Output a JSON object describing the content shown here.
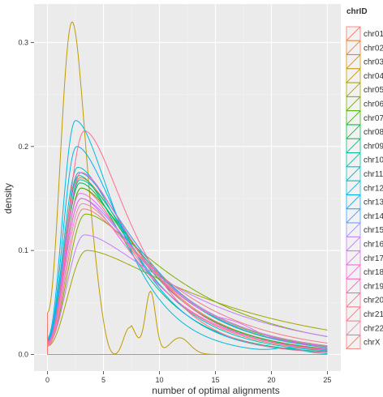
{
  "colors": {
    "panel_bg": "#EBEBEB",
    "grid_major": "#FFFFFF",
    "grid_minor": "#F5F5F5",
    "legend_key_bg": "#F2F2F2"
  },
  "chart_data": {
    "type": "density",
    "title": "",
    "xlabel": "number of optimal alignments",
    "ylabel": "density",
    "xlim": [
      -1.2,
      26.2
    ],
    "ylim": [
      -0.016,
      0.337
    ],
    "x_ticks": [
      0,
      5,
      10,
      15,
      20,
      25
    ],
    "x_tick_labels": [
      "0",
      "5",
      "10",
      "15",
      "20",
      "25"
    ],
    "y_ticks": [
      0.0,
      0.1,
      0.2,
      0.3
    ],
    "y_tick_labels": [
      "0.0",
      "0.1",
      "0.2",
      "0.3"
    ],
    "grid": true,
    "legend": {
      "title": "chrID",
      "placement": "right"
    },
    "series": [
      {
        "name": "chr01",
        "color": "#F8766D",
        "y0": 0.01,
        "peak": 0.16,
        "mode": 3.0,
        "tail": 3.2,
        "xmax": 25,
        "bumps": []
      },
      {
        "name": "chr02",
        "color": "#EA8331",
        "y0": 0.012,
        "peak": 0.17,
        "mode": 2.9,
        "tail": 3.3,
        "xmax": 25,
        "bumps": []
      },
      {
        "name": "chr03",
        "color": "#D89000",
        "y0": 0.014,
        "peak": 0.175,
        "mode": 2.8,
        "tail": 3.4,
        "xmax": 25,
        "bumps": []
      },
      {
        "name": "chr04",
        "color": "#C09B00",
        "y0": 0.04,
        "peak": 0.32,
        "mode": 2.2,
        "tail": 1.1,
        "xmax": 25,
        "bumps": [
          [
            7.2,
            0.028,
            0.7
          ],
          [
            9.2,
            0.06,
            0.45
          ],
          [
            11.8,
            0.016,
            0.9
          ]
        ]
      },
      {
        "name": "chr05",
        "color": "#A3A500",
        "y0": 0.008,
        "peak": 0.1,
        "mode": 3.5,
        "tail": 5.0,
        "xmax": 25,
        "bumps": []
      },
      {
        "name": "chr06",
        "color": "#7CAE00",
        "y0": 0.01,
        "peak": 0.135,
        "mode": 3.4,
        "tail": 4.2,
        "xmax": 25,
        "bumps": []
      },
      {
        "name": "chr07",
        "color": "#39B600",
        "y0": 0.012,
        "peak": 0.16,
        "mode": 3.0,
        "tail": 3.5,
        "xmax": 25,
        "bumps": []
      },
      {
        "name": "chr08",
        "color": "#00BB4E",
        "y0": 0.013,
        "peak": 0.165,
        "mode": 2.9,
        "tail": 3.3,
        "xmax": 25,
        "bumps": []
      },
      {
        "name": "chr09",
        "color": "#00BF7D",
        "y0": 0.014,
        "peak": 0.172,
        "mode": 2.8,
        "tail": 3.0,
        "xmax": 25,
        "bumps": []
      },
      {
        "name": "chr10",
        "color": "#00C1A3",
        "y0": 0.012,
        "peak": 0.168,
        "mode": 2.9,
        "tail": 3.4,
        "xmax": 25,
        "bumps": []
      },
      {
        "name": "chr11",
        "color": "#00BFC4",
        "y0": 0.015,
        "peak": 0.18,
        "mode": 2.7,
        "tail": 3.1,
        "xmax": 25,
        "bumps": []
      },
      {
        "name": "chr12",
        "color": "#00BAE0",
        "y0": 0.016,
        "peak": 0.225,
        "mode": 2.5,
        "tail": 2.6,
        "xmax": 25,
        "bumps": [
          [
            21.5,
            0.004,
            1.2
          ]
        ]
      },
      {
        "name": "chr13",
        "color": "#00B0F6",
        "y0": 0.014,
        "peak": 0.2,
        "mode": 2.6,
        "tail": 2.9,
        "xmax": 25,
        "bumps": []
      },
      {
        "name": "chr14",
        "color": "#35A2FF",
        "y0": 0.012,
        "peak": 0.175,
        "mode": 2.8,
        "tail": 3.4,
        "xmax": 25,
        "bumps": []
      },
      {
        "name": "chr15",
        "color": "#9590FF",
        "y0": 0.011,
        "peak": 0.15,
        "mode": 3.0,
        "tail": 3.6,
        "xmax": 25,
        "bumps": []
      },
      {
        "name": "chr16",
        "color": "#C77CFF",
        "y0": 0.01,
        "peak": 0.115,
        "mode": 3.3,
        "tail": 4.4,
        "xmax": 25,
        "bumps": []
      },
      {
        "name": "chr17",
        "color": "#E76BF3",
        "y0": 0.012,
        "peak": 0.155,
        "mode": 2.9,
        "tail": 3.5,
        "xmax": 25,
        "bumps": [
          [
            17.0,
            0.005,
            1.4
          ]
        ]
      },
      {
        "name": "chr18",
        "color": "#FA62DB",
        "y0": 0.011,
        "peak": 0.15,
        "mode": 3.0,
        "tail": 3.3,
        "xmax": 25,
        "bumps": []
      },
      {
        "name": "chr19",
        "color": "#FF62BC",
        "y0": 0.01,
        "peak": 0.175,
        "mode": 3.0,
        "tail": 3.2,
        "xmax": 25,
        "bumps": []
      },
      {
        "name": "chr20",
        "color": "#FF6C91",
        "y0": 0.008,
        "peak": 0.215,
        "mode": 3.3,
        "tail": 2.8,
        "xmax": 25,
        "bumps": []
      },
      {
        "name": "chr21",
        "color": "#F07D8A",
        "y0": 0.008,
        "peak": 0.14,
        "mode": 3.2,
        "tail": 3.8,
        "xmax": 25,
        "bumps": []
      },
      {
        "name": "chr22",
        "color": "#E58BA6",
        "y0": 0.009,
        "peak": 0.145,
        "mode": 3.1,
        "tail": 3.6,
        "xmax": 25,
        "bumps": []
      },
      {
        "name": "chrX",
        "color": "#F8766D",
        "y0": 0.04,
        "peak": 0.04,
        "mode": 0.0,
        "tail": 0.6,
        "xmax": 0.05,
        "bumps": []
      }
    ]
  }
}
